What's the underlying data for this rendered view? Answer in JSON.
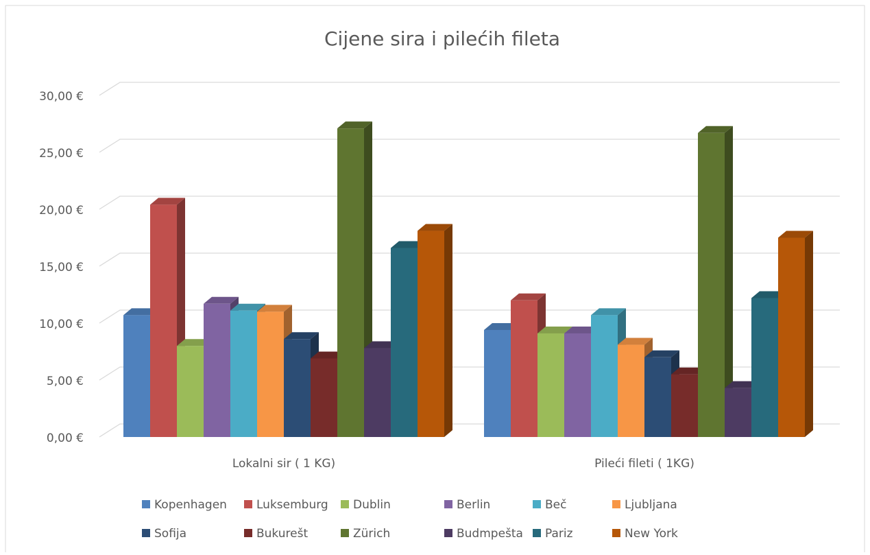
{
  "chart_data": {
    "type": "bar3d",
    "title": "Cijene sira i pilećih fileta",
    "categories": [
      "Lokalni sir ( 1 KG)",
      "Pileći fileti ( 1KG)"
    ],
    "ylim": [
      0,
      30
    ],
    "yticks": [
      {
        "value": 0,
        "label": "0,00 €"
      },
      {
        "value": 5,
        "label": "5,00 €"
      },
      {
        "value": 10,
        "label": "10,00 €"
      },
      {
        "value": 15,
        "label": "15,00 €"
      },
      {
        "value": 20,
        "label": "20,00 €"
      },
      {
        "value": 25,
        "label": "25,00 €"
      },
      {
        "value": 30,
        "label": "30,00 €"
      }
    ],
    "grid": true,
    "legend": "bottom",
    "series": [
      {
        "name": "Kopenhagen",
        "color": "#4f81bd",
        "values": [
          10.7,
          9.4
        ]
      },
      {
        "name": "Luksemburg",
        "color": "#c0504d",
        "values": [
          20.4,
          12.0
        ]
      },
      {
        "name": "Dublin",
        "color": "#9bbb59",
        "values": [
          8.0,
          9.1
        ]
      },
      {
        "name": "Berlin",
        "color": "#8064a2",
        "values": [
          11.7,
          9.1
        ]
      },
      {
        "name": "Beč",
        "color": "#4bacc6",
        "values": [
          11.1,
          10.7
        ]
      },
      {
        "name": "Ljubljana",
        "color": "#f79646",
        "values": [
          11.0,
          8.1
        ]
      },
      {
        "name": "Sofija",
        "color": "#2c4d75",
        "values": [
          8.6,
          7.0
        ]
      },
      {
        "name": "Bukurešt",
        "color": "#772c2a",
        "values": [
          6.9,
          5.5
        ]
      },
      {
        "name": "Zürich",
        "color": "#5f7530",
        "values": [
          27.1,
          26.7
        ]
      },
      {
        "name": "Budmpešta",
        "color": "#4d3b62",
        "values": [
          7.8,
          4.3
        ]
      },
      {
        "name": "Pariz",
        "color": "#276a7c",
        "values": [
          16.6,
          12.2
        ]
      },
      {
        "name": "New York",
        "color": "#b65708",
        "values": [
          18.1,
          17.5
        ]
      }
    ]
  }
}
